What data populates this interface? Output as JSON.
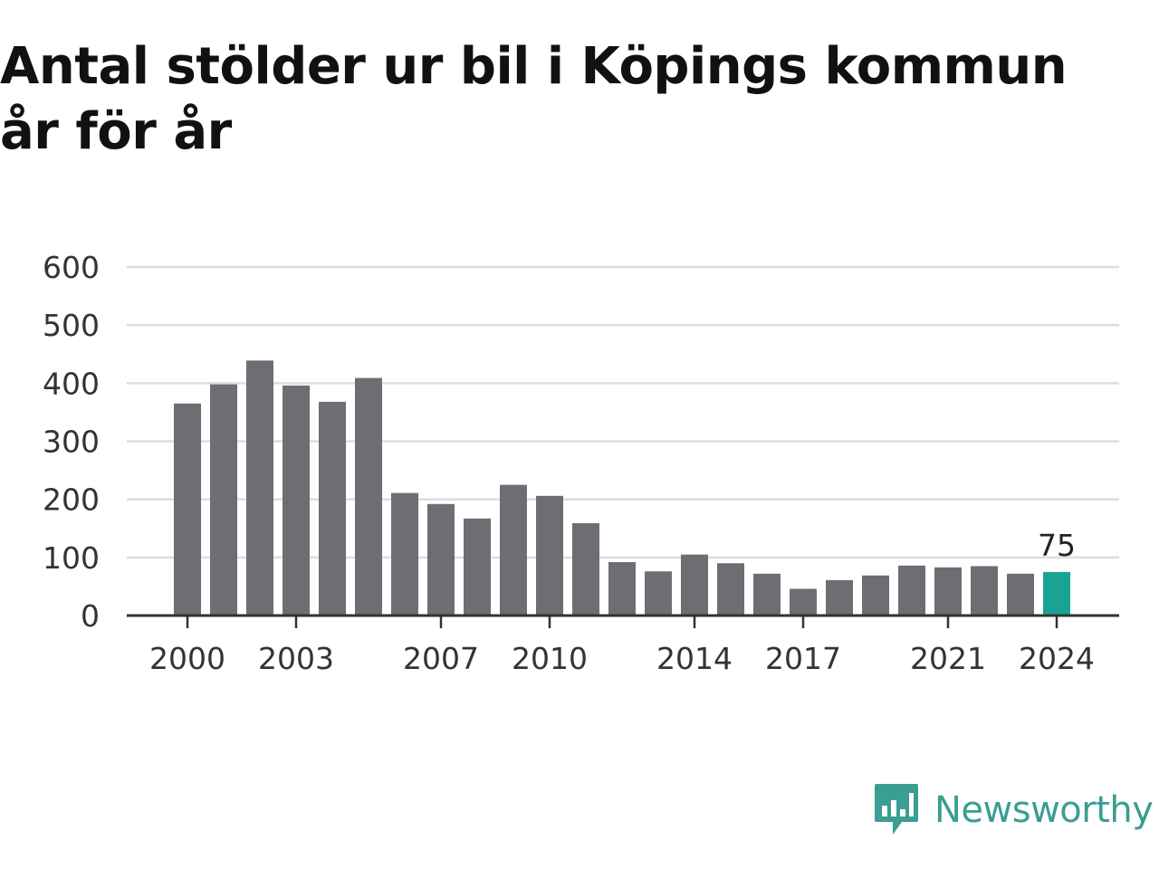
{
  "chart_data": {
    "type": "bar",
    "title": "Antal stölder ur bil i Köpings kommun år för år",
    "xlabel": "",
    "ylabel": "",
    "categories": [
      "2000",
      "2001",
      "2002",
      "2003",
      "2004",
      "2005",
      "2006",
      "2007",
      "2008",
      "2009",
      "2010",
      "2011",
      "2012",
      "2013",
      "2014",
      "2015",
      "2016",
      "2017",
      "2018",
      "2019",
      "2020",
      "2021",
      "2022",
      "2023",
      "2024"
    ],
    "values": [
      365,
      398,
      439,
      396,
      368,
      409,
      211,
      192,
      167,
      225,
      206,
      159,
      92,
      76,
      105,
      90,
      72,
      46,
      61,
      69,
      86,
      83,
      85,
      72,
      75
    ],
    "x_tick_labels": [
      "2000",
      "2003",
      "2007",
      "2010",
      "2014",
      "2017",
      "2021",
      "2024"
    ],
    "y_ticks": [
      0,
      100,
      200,
      300,
      400,
      500,
      600
    ],
    "ylim": [
      0,
      600
    ],
    "grid": true,
    "highlight_index": 24,
    "highlight_label": "75",
    "colors": {
      "bar": "#6e6d73",
      "highlight": "#1aa395",
      "grid": "#dddddd",
      "axis": "#333333",
      "tick_text": "#333333"
    }
  },
  "branding": {
    "name": "Newsworthy",
    "logo_icon": "chart-speech-bubble-icon",
    "color": "#3a9e92"
  }
}
